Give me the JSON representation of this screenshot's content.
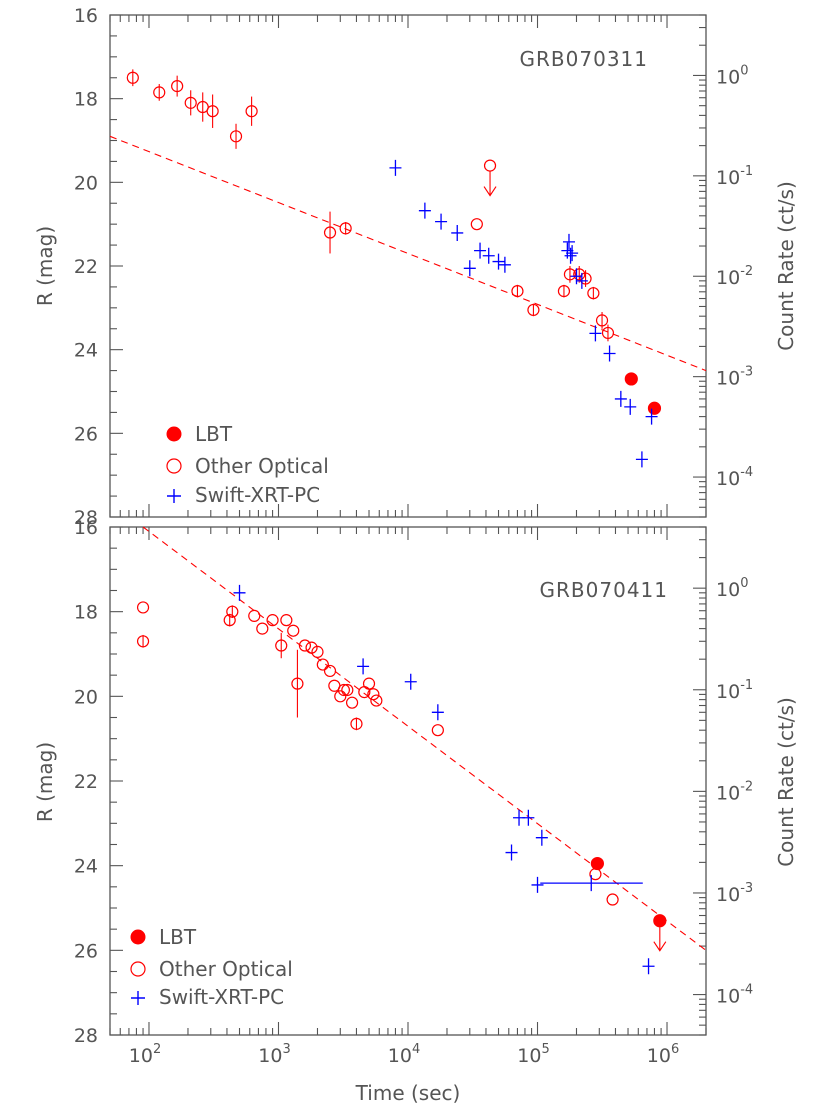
{
  "chart_data": [
    {
      "type": "scatter",
      "title": "GRB070311",
      "xlabel": "Time (sec)",
      "ylabel": "R (mag)",
      "y2label": "Count Rate (ct/s)",
      "x_scale": "log",
      "xlim": [
        50,
        2000000
      ],
      "ylim": [
        28,
        16
      ],
      "y2_scale": "log",
      "y2lim": [
        4e-05,
        4
      ],
      "x_ticks": [
        100,
        1000,
        10000,
        100000,
        1000000
      ],
      "x_tick_labels": [
        [
          "10",
          "2"
        ],
        [
          "10",
          "3"
        ],
        [
          "10",
          "4"
        ],
        [
          "10",
          "5"
        ],
        [
          "10",
          "6"
        ]
      ],
      "y_ticks": [
        16,
        18,
        20,
        22,
        24,
        26,
        28
      ],
      "y2_ticks": [
        1,
        0.1,
        0.01,
        0.001,
        0.0001
      ],
      "y2_tick_labels": [
        [
          "10",
          "0"
        ],
        [
          "10",
          "-1"
        ],
        [
          "10",
          "-2"
        ],
        [
          "10",
          "-3"
        ],
        [
          "10",
          "-4"
        ]
      ],
      "legend": {
        "position": "bottom-left",
        "entries": [
          {
            "label": "LBT",
            "marker": "filled-circle",
            "color": "#ff0000"
          },
          {
            "label": "Other Optical",
            "marker": "open-circle",
            "color": "#ff0000"
          },
          {
            "label": "Swift-XRT-PC",
            "marker": "plus",
            "color": "#0000ff"
          }
        ]
      },
      "fit_line": {
        "style": "dashed",
        "color": "#ff0000",
        "points": [
          [
            50,
            18.9
          ],
          [
            2000000,
            24.5
          ]
        ]
      },
      "series": [
        {
          "name": "LBT",
          "marker": "filled-circle",
          "color": "#ff0000",
          "points": [
            {
              "x": 530000,
              "y": 24.7
            },
            {
              "x": 800000,
              "y": 25.4
            }
          ]
        },
        {
          "name": "Other Optical",
          "marker": "open-circle",
          "color": "#ff0000",
          "points": [
            {
              "x": 75,
              "y": 17.5,
              "yerr": 0.2
            },
            {
              "x": 120,
              "y": 17.85,
              "yerr": 0.2
            },
            {
              "x": 165,
              "y": 17.7,
              "yerr": 0.25
            },
            {
              "x": 210,
              "y": 18.1,
              "yerr": 0.3
            },
            {
              "x": 260,
              "y": 18.2,
              "yerr": 0.35
            },
            {
              "x": 310,
              "y": 18.3,
              "yerr": 0.4
            },
            {
              "x": 470,
              "y": 18.9,
              "yerr": 0.3
            },
            {
              "x": 620,
              "y": 18.3,
              "yerr": 0.35
            },
            {
              "x": 2500,
              "y": 21.2,
              "yerr": 0.5
            },
            {
              "x": 3300,
              "y": 21.1,
              "yerr": 0.15
            },
            {
              "x": 34000,
              "y": 21.0
            },
            {
              "x": 43000,
              "y": 19.6,
              "upper_limit": true
            },
            {
              "x": 70000,
              "y": 22.6,
              "yerr": 0.15
            },
            {
              "x": 93000,
              "y": 23.05,
              "yerr": 0.15
            },
            {
              "x": 160000,
              "y": 22.6,
              "yerr": 0.15
            },
            {
              "x": 178000,
              "y": 22.2,
              "yerr": 0.2
            },
            {
              "x": 210000,
              "y": 22.2,
              "yerr": 0.2
            },
            {
              "x": 235000,
              "y": 22.3,
              "yerr": 0.2
            },
            {
              "x": 270000,
              "y": 22.65,
              "yerr": 0.15
            },
            {
              "x": 315000,
              "y": 23.3,
              "yerr": 0.2
            },
            {
              "x": 350000,
              "y": 23.6,
              "yerr": 0.2
            }
          ]
        },
        {
          "name": "Swift-XRT-PC",
          "marker": "plus",
          "color": "#0000ff",
          "points": [
            {
              "x": 8000,
              "y2": 0.12
            },
            {
              "x": 13500,
              "y2": 0.045
            },
            {
              "x": 18000,
              "y2": 0.035
            },
            {
              "x": 24000,
              "y2": 0.027
            },
            {
              "x": 30000,
              "y2": 0.012
            },
            {
              "x": 36000,
              "y2": 0.018
            },
            {
              "x": 42000,
              "y2": 0.016
            },
            {
              "x": 50000,
              "y2": 0.014
            },
            {
              "x": 56000,
              "y2": 0.013
            },
            {
              "x": 170000,
              "y2": 0.018
            },
            {
              "x": 175000,
              "y2": 0.022
            },
            {
              "x": 180000,
              "y2": 0.016
            },
            {
              "x": 185000,
              "y2": 0.017
            },
            {
              "x": 200000,
              "y2": 0.01
            },
            {
              "x": 220000,
              "y2": 0.009
            },
            {
              "x": 280000,
              "y2": 0.0027
            },
            {
              "x": 360000,
              "y2": 0.0017
            },
            {
              "x": 440000,
              "y2": 0.0006
            },
            {
              "x": 520000,
              "y2": 0.0005
            },
            {
              "x": 640000,
              "y2": 0.00015
            },
            {
              "x": 760000,
              "y2": 0.0004
            }
          ]
        }
      ]
    },
    {
      "type": "scatter",
      "title": "GRB070411",
      "xlabel": "Time (sec)",
      "ylabel": "R (mag)",
      "y2label": "Count Rate (ct/s)",
      "x_scale": "log",
      "xlim": [
        50,
        2000000
      ],
      "ylim": [
        28,
        16
      ],
      "y2_scale": "log",
      "y2lim": [
        4e-05,
        4
      ],
      "x_ticks": [
        100,
        1000,
        10000,
        100000,
        1000000
      ],
      "x_tick_labels": [
        [
          "10",
          "2"
        ],
        [
          "10",
          "3"
        ],
        [
          "10",
          "4"
        ],
        [
          "10",
          "5"
        ],
        [
          "10",
          "6"
        ]
      ],
      "y_ticks": [
        16,
        18,
        20,
        22,
        24,
        26,
        28
      ],
      "y2_ticks": [
        1,
        0.1,
        0.01,
        0.001,
        0.0001
      ],
      "y2_tick_labels": [
        [
          "10",
          "0"
        ],
        [
          "10",
          "-1"
        ],
        [
          "10",
          "-2"
        ],
        [
          "10",
          "-3"
        ],
        [
          "10",
          "-4"
        ]
      ],
      "legend": {
        "position": "bottom-left",
        "entries": [
          {
            "label": "LBT",
            "marker": "filled-circle",
            "color": "#ff0000"
          },
          {
            "label": "Other Optical",
            "marker": "open-circle",
            "color": "#ff0000"
          },
          {
            "label": "Swift-XRT-PC",
            "marker": "plus",
            "color": "#0000ff"
          }
        ]
      },
      "fit_line": {
        "style": "dashed",
        "color": "#ff0000",
        "points": [
          [
            90,
            16.0
          ],
          [
            2000000,
            26.0
          ]
        ]
      },
      "series": [
        {
          "name": "LBT",
          "marker": "filled-circle",
          "color": "#ff0000",
          "points": [
            {
              "x": 290000,
              "y": 23.95
            },
            {
              "x": 880000,
              "y": 25.3,
              "upper_limit": true
            }
          ]
        },
        {
          "name": "Other Optical",
          "marker": "open-circle",
          "color": "#ff0000",
          "points": [
            {
              "x": 90,
              "y": 17.9
            },
            {
              "x": 90,
              "y": 18.7,
              "yerr": 0.15
            },
            {
              "x": 420,
              "y": 18.2,
              "yerr": 0.15
            },
            {
              "x": 440,
              "y": 18.0,
              "yerr": 0.15
            },
            {
              "x": 650,
              "y": 18.1
            },
            {
              "x": 750,
              "y": 18.4
            },
            {
              "x": 900,
              "y": 18.2
            },
            {
              "x": 1050,
              "y": 18.8,
              "yerr": 0.3
            },
            {
              "x": 1150,
              "y": 18.2
            },
            {
              "x": 1300,
              "y": 18.45
            },
            {
              "x": 1400,
              "y": 19.7,
              "yerr": 0.8
            },
            {
              "x": 1600,
              "y": 18.8
            },
            {
              "x": 1800,
              "y": 18.85
            },
            {
              "x": 2000,
              "y": 18.95
            },
            {
              "x": 2200,
              "y": 19.25
            },
            {
              "x": 2500,
              "y": 19.4
            },
            {
              "x": 2700,
              "y": 19.75
            },
            {
              "x": 3000,
              "y": 20.0
            },
            {
              "x": 3200,
              "y": 19.85
            },
            {
              "x": 3400,
              "y": 19.85
            },
            {
              "x": 3700,
              "y": 20.15
            },
            {
              "x": 4000,
              "y": 20.65,
              "yerr": 0.15
            },
            {
              "x": 4600,
              "y": 19.9
            },
            {
              "x": 5000,
              "y": 19.7
            },
            {
              "x": 5400,
              "y": 19.95
            },
            {
              "x": 5700,
              "y": 20.1
            },
            {
              "x": 17000,
              "y": 20.8
            },
            {
              "x": 280000,
              "y": 24.2
            },
            {
              "x": 380000,
              "y": 24.8
            }
          ]
        },
        {
          "name": "Swift-XRT-PC",
          "marker": "plus",
          "color": "#0000ff",
          "points": [
            {
              "x": 500,
              "y2": 0.9
            },
            {
              "x": 4500,
              "y2": 0.17
            },
            {
              "x": 10500,
              "y2": 0.12
            },
            {
              "x": 17000,
              "y2": 0.06
            },
            {
              "x": 63000,
              "y2": 0.0025
            },
            {
              "x": 72000,
              "y2": 0.0055
            },
            {
              "x": 85000,
              "y2": 0.0055
            },
            {
              "x": 100000,
              "y2": 0.0012
            },
            {
              "x": 108000,
              "y2": 0.0035
            },
            {
              "x": 260000,
              "y2": 0.00125,
              "xerr": [
                105000,
                650000
              ]
            },
            {
              "x": 720000,
              "y2": 0.00019
            }
          ]
        }
      ]
    }
  ]
}
